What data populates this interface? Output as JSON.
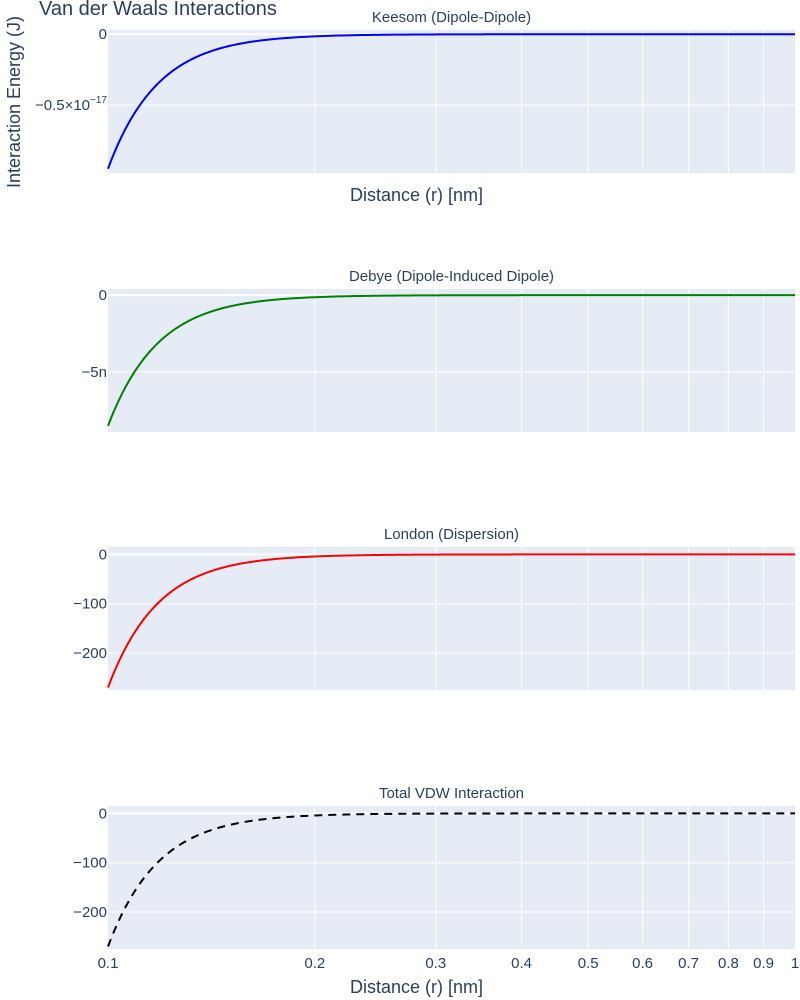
{
  "title": "Van der Waals Interactions",
  "ylabel": "Interaction Energy (J)",
  "xlabel": "Distance (r) [nm]",
  "chart_data": [
    {
      "type": "line",
      "title": "Keesom (Dipole-Dipole)",
      "x_scale": "log",
      "xlim": [
        0.1,
        1.0
      ],
      "ylim": [
        -9.8e-18,
        3e-19
      ],
      "y_ticks": [
        {
          "value": 0,
          "label": "0"
        },
        {
          "value": -5e-18,
          "label": "−0.5×10",
          "exp": "−17"
        }
      ],
      "xlabel": "Distance (r) [nm]",
      "series": [
        {
          "color": "#0000ff",
          "dash": "solid",
          "formula": "power",
          "coef": -9.5e-24,
          "exponent": 6,
          "x": [
            0.1,
            0.105,
            0.11,
            0.115,
            0.12,
            0.13,
            0.14,
            0.15,
            0.2,
            0.3,
            0.5,
            1.0
          ],
          "y": [
            -9.5e-18,
            -7.09e-18,
            -5.36e-18,
            -4.11e-18,
            -3.18e-18,
            -1.97e-18,
            -1.26e-18,
            -8.3e-19,
            -1.5e-19,
            -1.3e-20,
            -6.1e-22,
            -9.5e-24
          ]
        }
      ]
    },
    {
      "type": "line",
      "title": "Debye (Dipole-Induced Dipole)",
      "x_scale": "log",
      "xlim": [
        0.1,
        1.0
      ],
      "ylim": [
        -8.9e-09,
        4e-10
      ],
      "y_ticks": [
        {
          "value": 0,
          "label": "0"
        },
        {
          "value": -5e-09,
          "label": "−5n"
        }
      ],
      "series": [
        {
          "color": "#008000",
          "dash": "solid",
          "formula": "power",
          "coef": -8.5e-15,
          "exponent": 6,
          "x": [
            0.1,
            0.105,
            0.11,
            0.115,
            0.12,
            0.13,
            0.14,
            0.15,
            0.2,
            0.3,
            0.5,
            1.0
          ],
          "y": [
            -8.5e-09,
            -6.34e-09,
            -4.8e-09,
            -3.67e-09,
            -2.85e-09,
            -1.76e-09,
            -1.13e-09,
            -7.5e-10,
            -1.3e-10,
            -1.2e-11,
            -5.4e-13,
            -8.5e-15
          ]
        }
      ]
    },
    {
      "type": "line",
      "title": "London (Dispersion)",
      "x_scale": "log",
      "xlim": [
        0.1,
        1.0
      ],
      "ylim": [
        -275,
        15
      ],
      "y_ticks": [
        {
          "value": 0,
          "label": "0"
        },
        {
          "value": -100,
          "label": "−100"
        },
        {
          "value": -200,
          "label": "−200"
        }
      ],
      "series": [
        {
          "color": "#ff0000",
          "dash": "solid",
          "formula": "power",
          "coef": -0.00027,
          "exponent": 6,
          "x": [
            0.1,
            0.105,
            0.11,
            0.115,
            0.12,
            0.13,
            0.14,
            0.15,
            0.2,
            0.3,
            0.5,
            1.0
          ],
          "y": [
            -270,
            -201.5,
            -152.4,
            -116.7,
            -90.4,
            -55.9,
            -35.9,
            -23.7,
            -4.2,
            -0.37,
            -0.017,
            -0.00027
          ]
        }
      ]
    },
    {
      "type": "line",
      "title": "Total VDW Interaction",
      "x_scale": "log",
      "xlim": [
        0.1,
        1.0
      ],
      "ylim": [
        -275,
        15
      ],
      "y_ticks": [
        {
          "value": 0,
          "label": "0"
        },
        {
          "value": -100,
          "label": "−100"
        },
        {
          "value": -200,
          "label": "−200"
        }
      ],
      "x_ticks": [
        0.1,
        0.2,
        0.3,
        0.4,
        0.5,
        0.6,
        0.7,
        0.8,
        0.9,
        1
      ],
      "xlabel": "Distance (r) [nm]",
      "series": [
        {
          "color": "#000000",
          "dash": "dash",
          "formula": "power",
          "coef": -0.00027,
          "exponent": 6,
          "x": [
            0.1,
            0.105,
            0.11,
            0.115,
            0.12,
            0.13,
            0.14,
            0.15,
            0.2,
            0.3,
            0.5,
            1.0
          ],
          "y": [
            -270,
            -201.5,
            -152.4,
            -116.7,
            -90.4,
            -55.9,
            -35.9,
            -23.7,
            -4.2,
            -0.37,
            -0.017,
            -0.00027
          ]
        }
      ]
    }
  ]
}
